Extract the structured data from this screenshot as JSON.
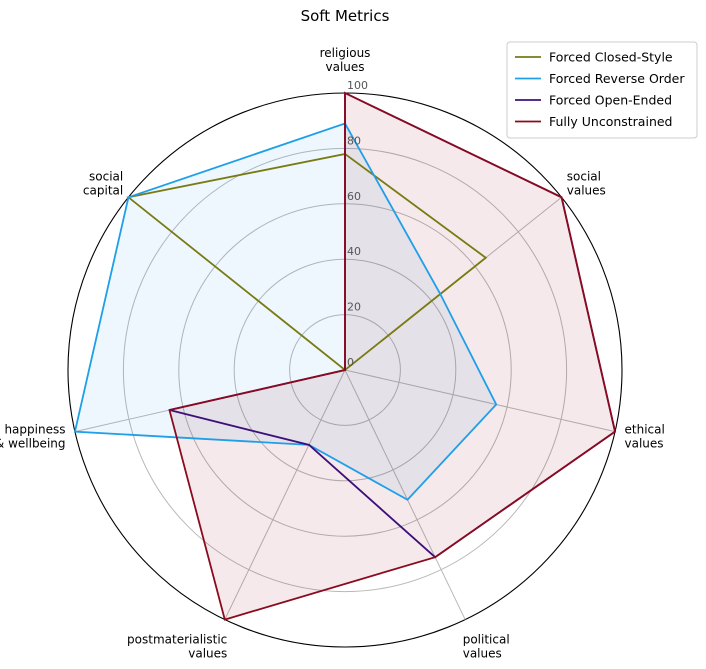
{
  "chart_data": {
    "type": "radar",
    "title": "Soft Metrics",
    "axes": [
      [
        "religious",
        "values"
      ],
      [
        "social",
        "values"
      ],
      [
        "ethical",
        "values"
      ],
      [
        "political",
        "values"
      ],
      [
        "postmaterialistic",
        "values"
      ],
      [
        "happiness",
        "& wellbeing"
      ],
      [
        "social",
        "capital"
      ]
    ],
    "radial_range": [
      0,
      100
    ],
    "radial_ticks": [
      0,
      20,
      40,
      60,
      80,
      100
    ],
    "grid": true,
    "legend_position": "top-right",
    "series": [
      {
        "name": "Forced Closed-Style",
        "color": "#7a7a12",
        "fill": false,
        "values": [
          78,
          65,
          0,
          0,
          0,
          0,
          100
        ]
      },
      {
        "name": "Forced Reverse Order",
        "color": "#1f9fe8",
        "fill": true,
        "fill_opacity": 0.08,
        "values": [
          89,
          44,
          56,
          52,
          30,
          100,
          100
        ]
      },
      {
        "name": "Forced Open-Ended",
        "color": "#3d0f7a",
        "fill": false,
        "values": [
          100,
          100,
          100,
          75,
          30,
          65,
          0
        ]
      },
      {
        "name": "Fully Unconstrained",
        "color": "#8b0a1e",
        "fill": true,
        "fill_opacity": 0.09,
        "values": [
          100,
          100,
          100,
          75,
          100,
          65,
          0
        ]
      }
    ]
  }
}
